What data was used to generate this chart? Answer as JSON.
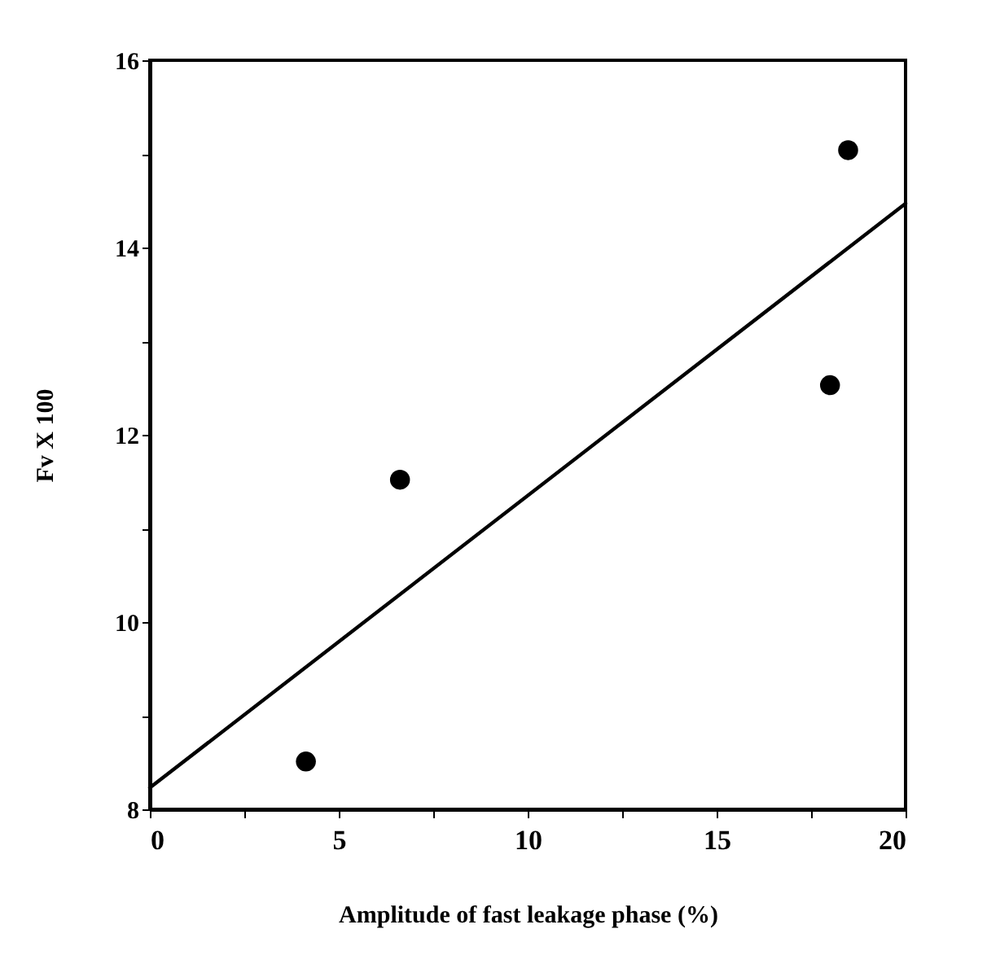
{
  "chart_data": {
    "type": "scatter",
    "xlabel": "Amplitude of fast leakage phase (%)",
    "ylabel": "Fv  X 100",
    "xlim": [
      0,
      20
    ],
    "ylim": [
      8,
      16
    ],
    "xticks": [
      0,
      {
        "value": 2.5,
        "label": null
      },
      5,
      {
        "value": 7.5,
        "label": null
      },
      10,
      {
        "value": 12.5,
        "label": null
      },
      15,
      {
        "value": 17.5,
        "label": null
      },
      20
    ],
    "yticks": [
      8,
      {
        "value": 9,
        "label": null
      },
      10,
      {
        "value": 11,
        "label": null
      },
      12,
      {
        "value": 13,
        "label": null
      },
      14,
      {
        "value": 15,
        "label": null
      },
      16
    ],
    "series": [
      {
        "marker": "circle",
        "color": "#000000",
        "x": [
          4.13,
          6.62,
          18.0,
          18.48
        ],
        "values": [
          8.51,
          11.52,
          12.53,
          15.04
        ]
      },
      {
        "type": "line",
        "marker": "none",
        "color": "#000000",
        "x": [
          0,
          20
        ],
        "values": [
          8.23,
          14.47
        ]
      }
    ]
  }
}
